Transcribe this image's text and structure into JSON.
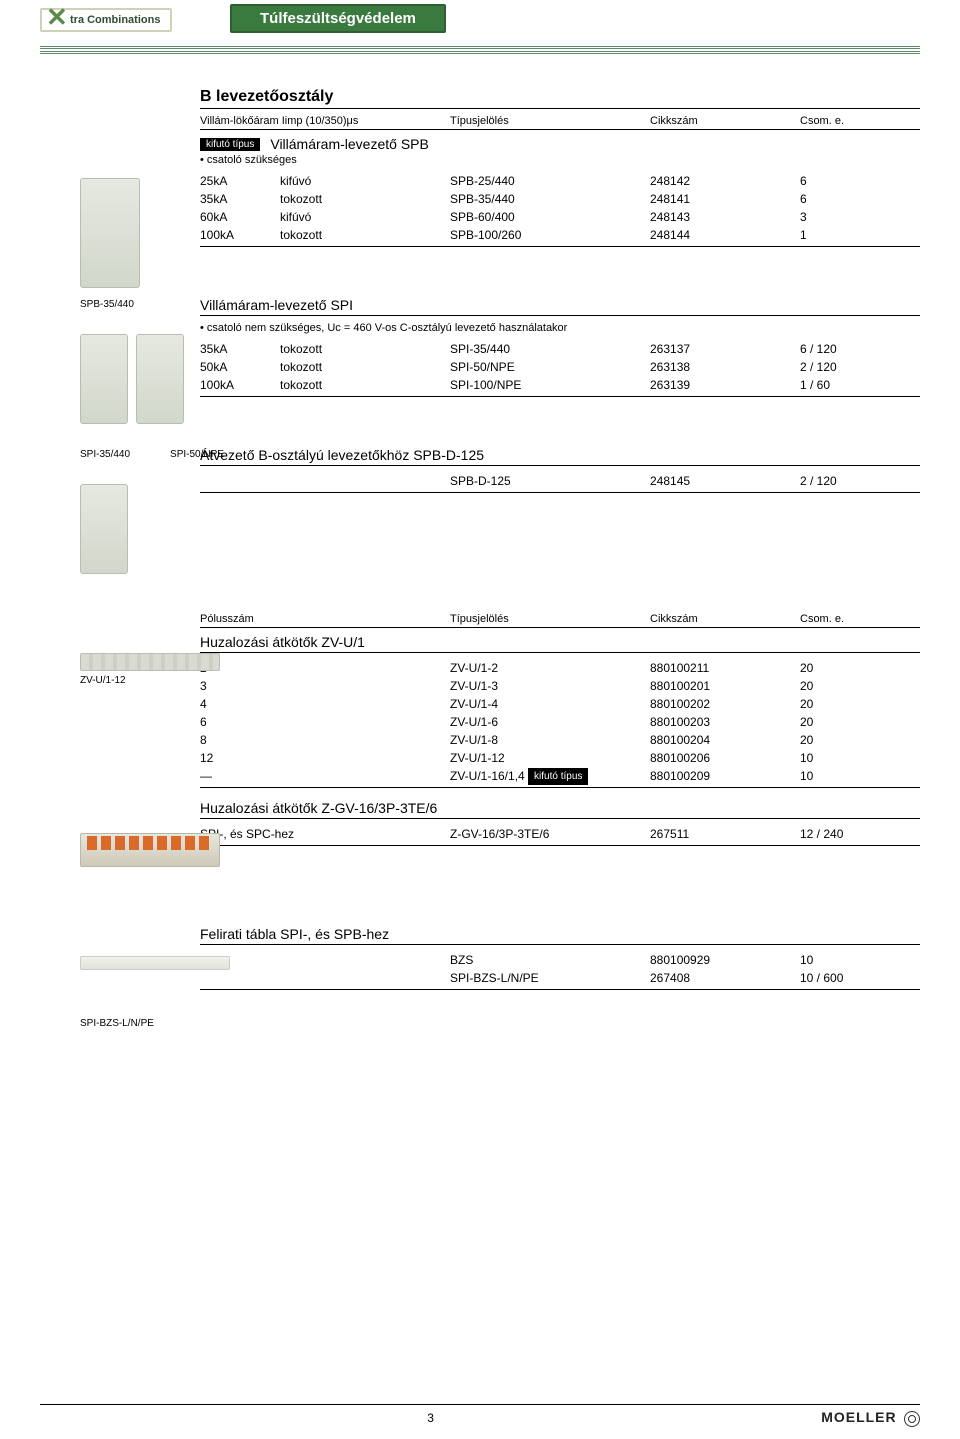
{
  "header": {
    "badge_label": "tra Combinations",
    "pill_label": "Túlfeszültségvédelem"
  },
  "side_tab": "pole",
  "section_b": {
    "title": "B levezetőosztály",
    "head": {
      "c1": "Villám-lökőáram Iimp (10/350)μs",
      "c2": "Típusjelölés",
      "c3": "Cikkszám",
      "c4": "Csom. e."
    },
    "kifuto": "kifutó típus",
    "spb": {
      "title": "Villámáram-levezető SPB",
      "note": "• csatoló szükséges",
      "rows": [
        {
          "a": "25kA",
          "b": "kifúvó",
          "c": "SPB-25/440",
          "d": "248142",
          "e": "6"
        },
        {
          "a": "35kA",
          "b": "tokozott",
          "c": "SPB-35/440",
          "d": "248141",
          "e": "6"
        },
        {
          "a": "60kA",
          "b": "kifúvó",
          "c": "SPB-60/400",
          "d": "248143",
          "e": "3"
        },
        {
          "a": "100kA",
          "b": "tokozott",
          "c": "SPB-100/260",
          "d": "248144",
          "e": "1"
        }
      ]
    },
    "caption_spb35": "SPB-35/440",
    "spi": {
      "title": "Villámáram-levezető SPI",
      "note": "• csatoló nem szükséges, Uc = 460 V-os C-osztályú levezető használatakor",
      "rows": [
        {
          "a": "35kA",
          "b": "tokozott",
          "c": "SPI-35/440",
          "d": "263137",
          "e": "6 / 120"
        },
        {
          "a": "50kA",
          "b": "tokozott",
          "c": "SPI-50/NPE",
          "d": "263138",
          "e": "2 / 120"
        },
        {
          "a": "100kA",
          "b": "tokozott",
          "c": "SPI-100/NPE",
          "d": "263139",
          "e": "1 / 60"
        }
      ]
    },
    "caption_spi1": "SPI-35/440",
    "caption_spi2": "SPI-50/NPE",
    "atvezeto": {
      "title": "Átvezető B-osztályú levezetőkhöz SPB-D-125",
      "row": {
        "c": "SPB-D-125",
        "d": "248145",
        "e": "2 / 120"
      }
    }
  },
  "section_zv": {
    "head": {
      "c1": "Pólusszám",
      "c2": "Típusjelölés",
      "c3": "Cikkszám",
      "c4": "Csom. e."
    },
    "title": "Huzalozási átkötők ZV-U/1",
    "caption": "ZV-U/1-12",
    "kifuto": "kifutó típus",
    "rows": [
      {
        "a": "2",
        "c": "ZV-U/1-2",
        "d": "880100211",
        "e": "20"
      },
      {
        "a": "3",
        "c": "ZV-U/1-3",
        "d": "880100201",
        "e": "20"
      },
      {
        "a": "4",
        "c": "ZV-U/1-4",
        "d": "880100202",
        "e": "20"
      },
      {
        "a": "6",
        "c": "ZV-U/1-6",
        "d": "880100203",
        "e": "20"
      },
      {
        "a": "8",
        "c": "ZV-U/1-8",
        "d": "880100204",
        "e": "20"
      },
      {
        "a": "12",
        "c": "ZV-U/1-12",
        "d": "880100206",
        "e": "10"
      },
      {
        "a": "—",
        "c": "ZV-U/1-16/1,4",
        "d": "880100209",
        "e": "10",
        "kifuto": true
      }
    ]
  },
  "section_zgv": {
    "title": "Huzalozási átkötők Z-GV-16/3P-3TE/6",
    "row": {
      "a": "SPI-, és SPC-hez",
      "c": "Z-GV-16/3P-3TE/6",
      "d": "267511",
      "e": "12 / 240"
    }
  },
  "section_felirati": {
    "title": "Felirati tábla SPI-, és SPB-hez",
    "rows": [
      {
        "c": "BZS",
        "d": "880100929",
        "e": "10"
      },
      {
        "c": "SPI-BZS-L/N/PE",
        "d": "267408",
        "e": "10 / 600"
      }
    ],
    "caption": "SPI-BZS-L/N/PE"
  },
  "footer": {
    "page": "3",
    "brand": "MOELLER"
  }
}
